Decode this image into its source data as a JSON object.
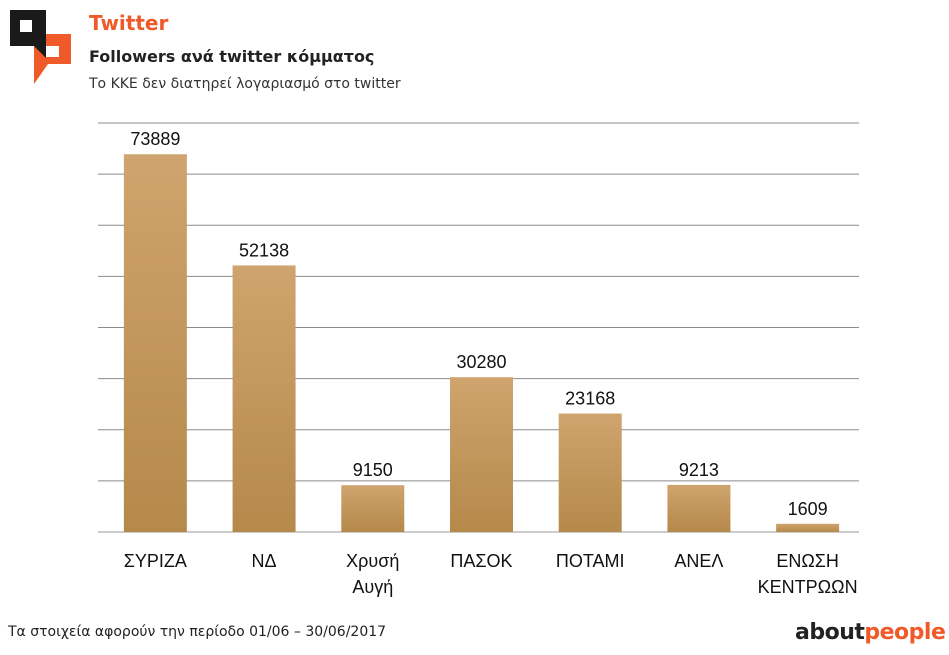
{
  "header": {
    "title": "Twitter",
    "subtitle": "Followers ανά twitter κόμματος",
    "note": "Το ΚΚΕ δεν διατηρεί λογαριασμό στο twitter"
  },
  "footer": {
    "period": "Τα στοιχεία αφορούν την περίοδο 01/06 – 30/06/2017",
    "brand_a": "about",
    "brand_b": "people"
  },
  "colors": {
    "accent": "#f05a28",
    "bar_top": "#cfa46e",
    "bar_bottom": "#b5894a",
    "grid": "#8c8c8c"
  },
  "chart_data": {
    "type": "bar",
    "title": "Followers ανά twitter κόμματος",
    "categories": [
      [
        "ΣΥΡΙΖΑ"
      ],
      [
        "ΝΔ"
      ],
      [
        "Χρυσή",
        "Αυγή"
      ],
      [
        "ΠΑΣΟΚ"
      ],
      [
        "ΠΟΤΑΜΙ"
      ],
      [
        "ΑΝΕΛ"
      ],
      [
        "ΕΝΩΣΗ",
        "ΚΕΝΤΡΩΩΝ"
      ]
    ],
    "values": [
      73889,
      52138,
      9150,
      30280,
      23168,
      9213,
      1609
    ],
    "ylim": [
      0,
      80000
    ],
    "ystep": 10000,
    "grid": true,
    "legend": "none",
    "xlabel": "",
    "ylabel": ""
  }
}
